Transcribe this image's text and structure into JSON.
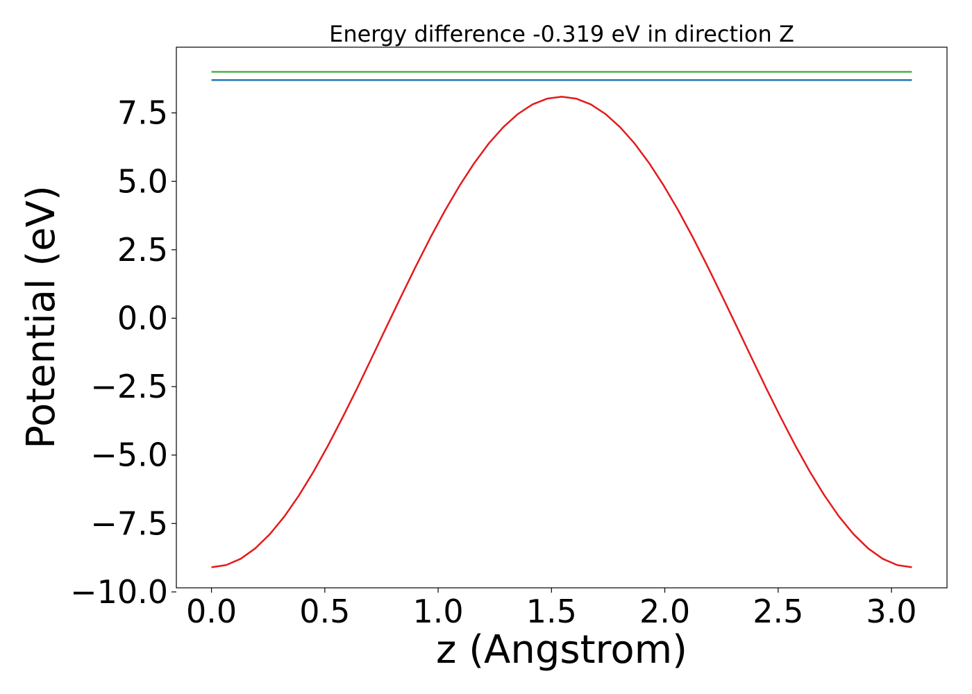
{
  "chart_data": {
    "type": "line",
    "title": "Energy difference -0.319 eV in direction Z",
    "xlabel": "z (Angstrom)",
    "ylabel": "Potential (eV)",
    "xlim": [
      -0.155,
      3.245
    ],
    "ylim": [
      -9.85,
      9.9
    ],
    "xticks": [
      0.0,
      0.5,
      1.0,
      1.5,
      2.0,
      2.5,
      3.0
    ],
    "xtick_labels": [
      "0.0",
      "0.5",
      "1.0",
      "1.5",
      "2.0",
      "2.5",
      "3.0"
    ],
    "yticks": [
      -10.0,
      -7.5,
      -5.0,
      -2.5,
      0.0,
      2.5,
      5.0,
      7.5
    ],
    "ytick_labels": [
      "−10.0",
      "−7.5",
      "−5.0",
      "−2.5",
      "0.0",
      "2.5",
      "5.0",
      "7.5"
    ],
    "grid": false,
    "legend": "none",
    "series": [
      {
        "color": "#e41a1c",
        "x": [
          0.0,
          0.0644,
          0.1288,
          0.1931,
          0.2575,
          0.3219,
          0.3863,
          0.4506,
          0.515,
          0.5794,
          0.6438,
          0.7081,
          0.7725,
          0.8369,
          0.9013,
          0.9656,
          1.03,
          1.0944,
          1.1588,
          1.2231,
          1.2875,
          1.3519,
          1.4163,
          1.4806,
          1.545,
          1.6094,
          1.6738,
          1.7381,
          1.8025,
          1.8669,
          1.9313,
          1.9956,
          2.06,
          2.1244,
          2.1888,
          2.2531,
          2.3175,
          2.3819,
          2.4463,
          2.5106,
          2.575,
          2.6394,
          2.7038,
          2.7681,
          2.8325,
          2.8969,
          2.9613,
          3.0256,
          3.09
        ],
        "y": [
          -9.1,
          -9.02,
          -8.79,
          -8.41,
          -7.89,
          -7.24,
          -6.47,
          -5.6,
          -4.64,
          -3.61,
          -2.54,
          -1.43,
          -0.31,
          0.8,
          1.89,
          2.94,
          3.93,
          4.84,
          5.66,
          6.38,
          6.98,
          7.46,
          7.81,
          8.02,
          8.09,
          8.02,
          7.81,
          7.46,
          6.98,
          6.38,
          5.66,
          4.84,
          3.93,
          2.94,
          1.89,
          0.8,
          -0.31,
          -1.43,
          -2.54,
          -3.61,
          -4.64,
          -5.6,
          -6.47,
          -7.24,
          -7.89,
          -8.41,
          -8.79,
          -9.02,
          -9.1
        ]
      },
      {
        "color": "#1f77b4",
        "x": [
          0.0,
          3.09
        ],
        "y": [
          8.7,
          8.7
        ]
      },
      {
        "color": "#4daf4a",
        "x": [
          0.0,
          3.09
        ],
        "y": [
          9.0,
          9.0
        ]
      }
    ]
  },
  "colors": {
    "curve": "#e41a1c",
    "reference_blue": "#1f77b4",
    "reference_green": "#4daf4a"
  }
}
